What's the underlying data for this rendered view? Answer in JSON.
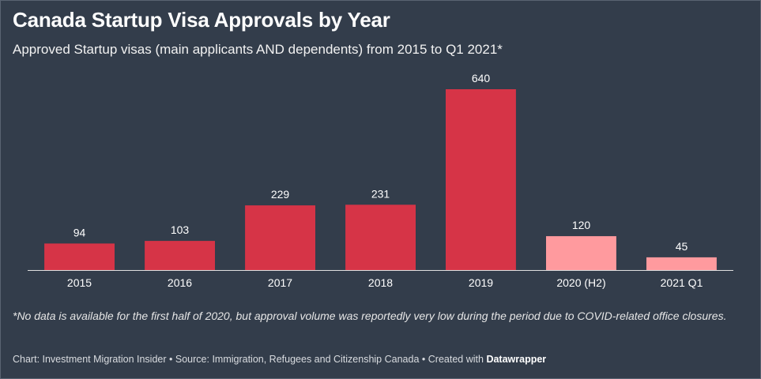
{
  "header": {
    "title": "Canada Startup Visa Approvals by Year",
    "subtitle": "Approved Startup visas (main applicants AND dependents) from 2015 to Q1 2021*"
  },
  "note": "*No data is available for the first half of 2020, but approval volume was reportedly very low during the period due to COVID-related office closures.",
  "footer": {
    "chart_credit": "Chart: Investment Migration Insider",
    "separator": "•",
    "source": "Source: Immigration, Refugees and Citizenship Canada",
    "created_with": "Created with",
    "brand": "Datawrapper"
  },
  "colors": {
    "background": "#333d4b",
    "bar_full_year": "#d63447",
    "bar_partial": "#ff9a9e"
  },
  "chart_data": {
    "type": "bar",
    "title": "Canada Startup Visa Approvals by Year",
    "subtitle": "Approved Startup visas (main applicants AND dependents) from 2015 to Q1 2021*",
    "categories": [
      "2015",
      "2016",
      "2017",
      "2018",
      "2019",
      "2020 (H2)",
      "2021 Q1"
    ],
    "values": [
      94,
      103,
      229,
      231,
      640,
      120,
      45
    ],
    "bar_colors": [
      "#d63447",
      "#d63447",
      "#d63447",
      "#d63447",
      "#d63447",
      "#ff9a9e",
      "#ff9a9e"
    ],
    "data_labels": true,
    "xlabel": "",
    "ylabel": "",
    "ylim": [
      0,
      640
    ],
    "grid": false,
    "legend": "none"
  }
}
